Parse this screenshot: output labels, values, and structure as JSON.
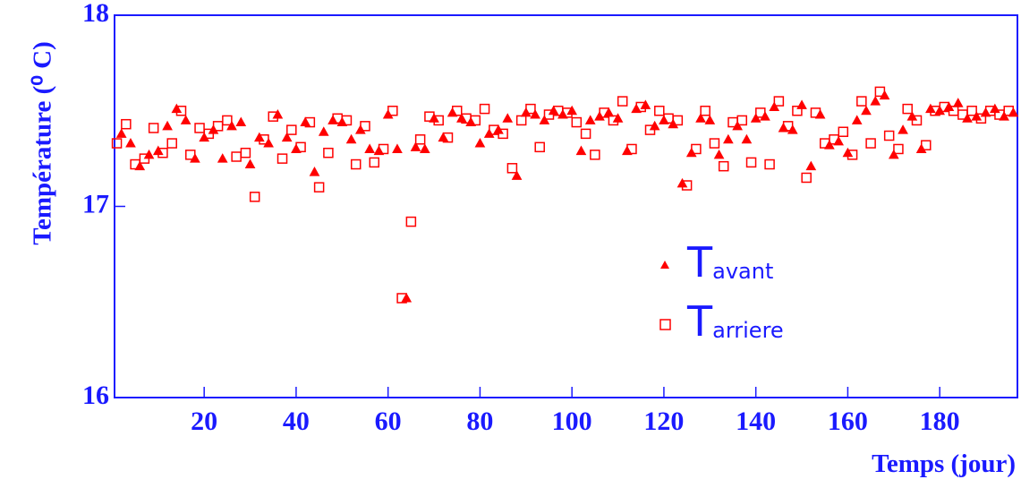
{
  "chart_data": {
    "type": "scatter",
    "x_label": "Temps (jour)",
    "y_label": "Température (⁰ C)",
    "xlim": [
      0.5,
      196.9
    ],
    "ylim": [
      16,
      18
    ],
    "xticks": [
      20,
      40,
      60,
      80,
      100,
      120,
      140,
      160,
      180
    ],
    "yticks": [
      16,
      17,
      18
    ],
    "series": [
      {
        "name": "Tavant",
        "marker": "triangle",
        "color": "#ff0000",
        "x": [
          2,
          4,
          6,
          8,
          10,
          12,
          14,
          16,
          18,
          20,
          22,
          24,
          26,
          28,
          30,
          32,
          34,
          36,
          38,
          40,
          42,
          44,
          46,
          48,
          50,
          52,
          54,
          56,
          58,
          60,
          62,
          64,
          66,
          68,
          70,
          72,
          74,
          76,
          78,
          80,
          82,
          84,
          86,
          88,
          90,
          92,
          94,
          96,
          98,
          100,
          102,
          104,
          106,
          108,
          110,
          112,
          114,
          116,
          118,
          120,
          122,
          124,
          126,
          128,
          130,
          132,
          134,
          136,
          138,
          140,
          142,
          144,
          146,
          148,
          150,
          152,
          154,
          156,
          158,
          160,
          162,
          164,
          166,
          168,
          170,
          172,
          174,
          176,
          178,
          180,
          182,
          184,
          186,
          188,
          190,
          192,
          194,
          196
        ],
        "values": [
          17.38,
          17.33,
          17.21,
          17.27,
          17.29,
          17.42,
          17.51,
          17.45,
          17.25,
          17.36,
          17.4,
          17.25,
          17.42,
          17.44,
          17.22,
          17.36,
          17.33,
          17.48,
          17.36,
          17.3,
          17.44,
          17.18,
          17.39,
          17.45,
          17.44,
          17.35,
          17.4,
          17.3,
          17.29,
          17.48,
          17.3,
          16.52,
          17.31,
          17.3,
          17.46,
          17.36,
          17.49,
          17.46,
          17.44,
          17.33,
          17.38,
          17.4,
          17.46,
          17.16,
          17.49,
          17.48,
          17.45,
          17.5,
          17.48,
          17.5,
          17.29,
          17.45,
          17.47,
          17.49,
          17.46,
          17.29,
          17.51,
          17.53,
          17.42,
          17.45,
          17.43,
          17.12,
          17.28,
          17.46,
          17.45,
          17.27,
          17.35,
          17.42,
          17.35,
          17.46,
          17.47,
          17.52,
          17.41,
          17.4,
          17.53,
          17.21,
          17.48,
          17.32,
          17.34,
          17.28,
          17.45,
          17.5,
          17.55,
          17.58,
          17.27,
          17.4,
          17.47,
          17.3,
          17.51,
          17.5,
          17.52,
          17.54,
          17.46,
          17.47,
          17.49,
          17.51,
          17.47,
          17.49
        ]
      },
      {
        "name": "Tarriere",
        "marker": "square",
        "color": "#ff0000",
        "x": [
          1,
          3,
          5,
          7,
          9,
          11,
          13,
          15,
          17,
          19,
          21,
          23,
          25,
          27,
          29,
          31,
          33,
          35,
          37,
          39,
          41,
          43,
          45,
          47,
          49,
          51,
          53,
          55,
          57,
          59,
          61,
          63,
          65,
          67,
          69,
          71,
          73,
          75,
          77,
          79,
          81,
          83,
          85,
          87,
          89,
          91,
          93,
          95,
          97,
          99,
          101,
          103,
          105,
          107,
          109,
          111,
          113,
          115,
          117,
          119,
          121,
          123,
          125,
          127,
          129,
          131,
          133,
          135,
          137,
          139,
          141,
          143,
          145,
          147,
          149,
          151,
          153,
          155,
          157,
          159,
          161,
          163,
          165,
          167,
          169,
          171,
          173,
          175,
          177,
          179,
          181,
          183,
          185,
          187,
          189,
          191,
          193,
          195
        ],
        "values": [
          17.33,
          17.43,
          17.22,
          17.25,
          17.41,
          17.28,
          17.33,
          17.5,
          17.27,
          17.41,
          17.38,
          17.42,
          17.45,
          17.26,
          17.28,
          17.05,
          17.35,
          17.47,
          17.25,
          17.4,
          17.31,
          17.44,
          17.1,
          17.28,
          17.46,
          17.45,
          17.22,
          17.42,
          17.23,
          17.3,
          17.5,
          16.52,
          16.92,
          17.35,
          17.47,
          17.45,
          17.36,
          17.5,
          17.46,
          17.45,
          17.51,
          17.4,
          17.38,
          17.2,
          17.45,
          17.51,
          17.31,
          17.48,
          17.5,
          17.49,
          17.44,
          17.38,
          17.27,
          17.49,
          17.45,
          17.55,
          17.3,
          17.52,
          17.4,
          17.5,
          17.46,
          17.45,
          17.11,
          17.3,
          17.5,
          17.33,
          17.21,
          17.44,
          17.45,
          17.23,
          17.49,
          17.22,
          17.55,
          17.42,
          17.5,
          17.15,
          17.49,
          17.33,
          17.35,
          17.39,
          17.27,
          17.55,
          17.33,
          17.6,
          17.37,
          17.3,
          17.51,
          17.45,
          17.32,
          17.5,
          17.52,
          17.5,
          17.48,
          17.5,
          17.46,
          17.5,
          17.48,
          17.5
        ]
      }
    ]
  }
}
